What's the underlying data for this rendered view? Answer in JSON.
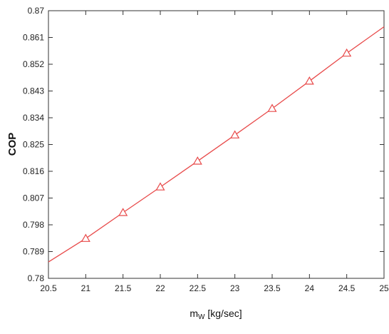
{
  "chart_data": {
    "type": "line",
    "title": "",
    "xlabel": {
      "main": "m",
      "subscript": "W",
      "unit": " [kg/sec]"
    },
    "ylabel": "COP",
    "xlim": [
      20.5,
      25
    ],
    "ylim": [
      0.78,
      0.87
    ],
    "x_ticks": [
      20.5,
      21,
      21.5,
      22,
      22.5,
      23,
      23.5,
      24,
      24.5,
      25
    ],
    "x_tick_labels": [
      "20.5",
      "21",
      "21.5",
      "22",
      "22.5",
      "23",
      "23.5",
      "24",
      "24.5",
      "25"
    ],
    "y_ticks": [
      0.78,
      0.789,
      0.798,
      0.807,
      0.816,
      0.825,
      0.834,
      0.843,
      0.852,
      0.861,
      0.87
    ],
    "y_tick_labels": [
      "0.78",
      "0.789",
      "0.798",
      "0.807",
      "0.816",
      "0.825",
      "0.834",
      "0.843",
      "0.852",
      "0.861",
      "0.87"
    ],
    "grid": false,
    "line": {
      "x": [
        20.5,
        25
      ],
      "y": [
        0.7855,
        0.8646
      ]
    },
    "series": [
      {
        "marker": "triangle",
        "x": [
          21,
          21.5,
          22,
          22.5,
          23,
          23.5,
          24,
          24.5
        ],
        "y": [
          0.7934,
          0.8021,
          0.8107,
          0.8194,
          0.8282,
          0.8371,
          0.8463,
          0.8557
        ]
      }
    ],
    "colors": {
      "series": "#e84a4a",
      "axis": "#333333"
    }
  }
}
